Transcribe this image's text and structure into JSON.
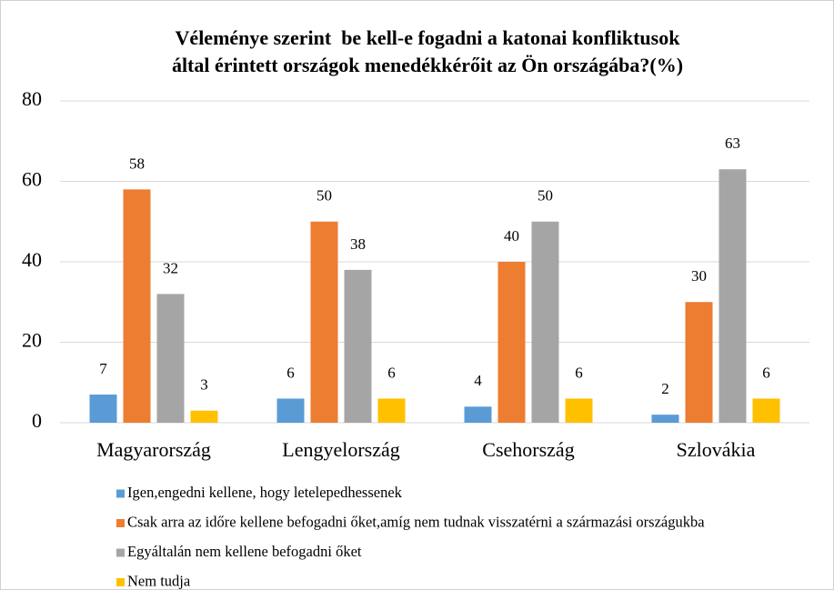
{
  "chart_data": {
    "type": "bar",
    "title": [
      "Véleménye szerint  be kell-e fogadni a katonai konfliktusok",
      "által érintett országok menedékkérőit az Ön országába?(%)"
    ],
    "categories": [
      "Magyarország",
      "Lengyelország",
      "Csehország",
      "Szlovákia"
    ],
    "series": [
      {
        "name": "Igen,engedni kellene, hogy letelepedhessenek",
        "color": "#5b9bd5",
        "values": [
          7,
          6,
          4,
          2
        ]
      },
      {
        "name": "Csak arra az időre kellene befogadni őket,amíg nem tudnak visszatérni a származási országukba",
        "color": "#ed7d31",
        "values": [
          58,
          50,
          40,
          30
        ]
      },
      {
        "name": "Egyáltalán nem kellene befogadni őket",
        "color": "#a5a5a5",
        "values": [
          32,
          38,
          50,
          63
        ]
      },
      {
        "name": "Nem tudja",
        "color": "#ffc000",
        "values": [
          3,
          6,
          6,
          6
        ]
      }
    ],
    "ylim": [
      0,
      80
    ],
    "yticks": [
      0,
      20,
      40,
      60,
      80
    ],
    "grid": true,
    "legend": "bottom"
  }
}
